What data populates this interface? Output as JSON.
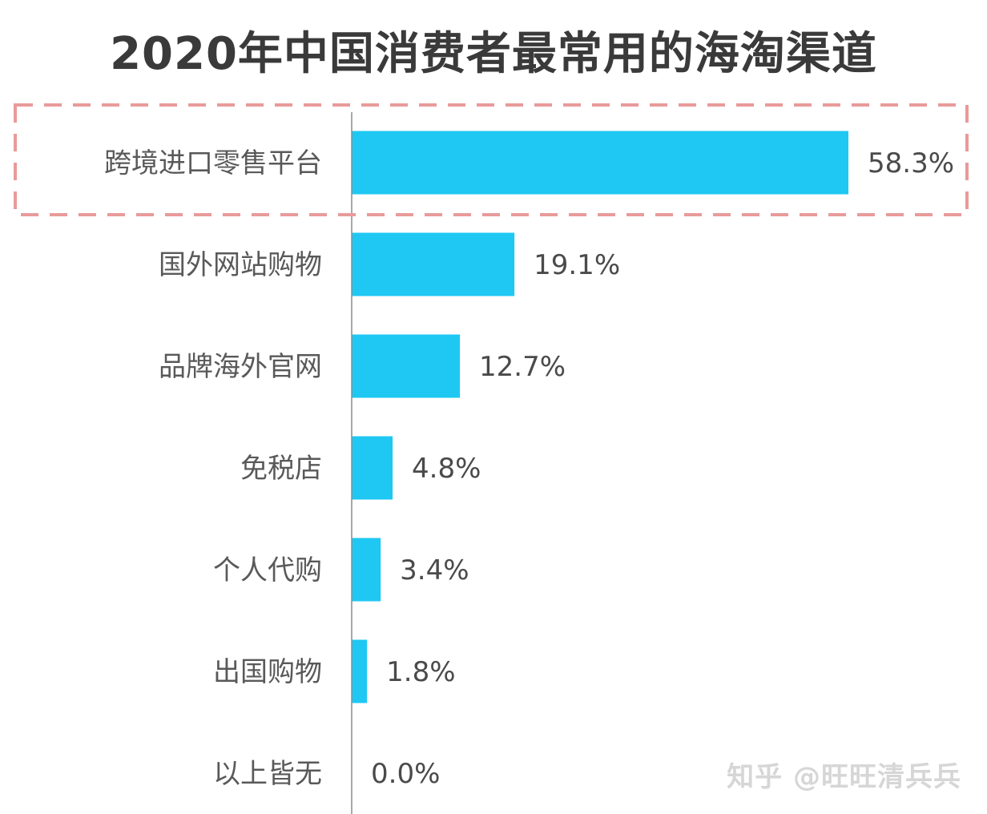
{
  "chart_data": {
    "type": "bar",
    "orientation": "horizontal",
    "title": "2020年中国消费者最常用的海淘渠道",
    "categories": [
      "跨境进口零售平台",
      "国外网站购物",
      "品牌海外官网",
      "免税店",
      "个人代购",
      "出国购物",
      "以上皆无"
    ],
    "values": [
      58.3,
      19.1,
      12.7,
      4.8,
      3.4,
      1.8,
      0.0
    ],
    "value_labels": [
      "58.3%",
      "19.1%",
      "12.7%",
      "4.8%",
      "3.4%",
      "1.8%",
      "0.0%"
    ],
    "unit": "%",
    "xlim": [
      0,
      58.3
    ],
    "grid": false,
    "bar_color": "#1EC8F2",
    "highlight_index": 0,
    "highlight_color": "#E89A9A"
  },
  "watermark": "知乎 @旺旺清兵兵"
}
